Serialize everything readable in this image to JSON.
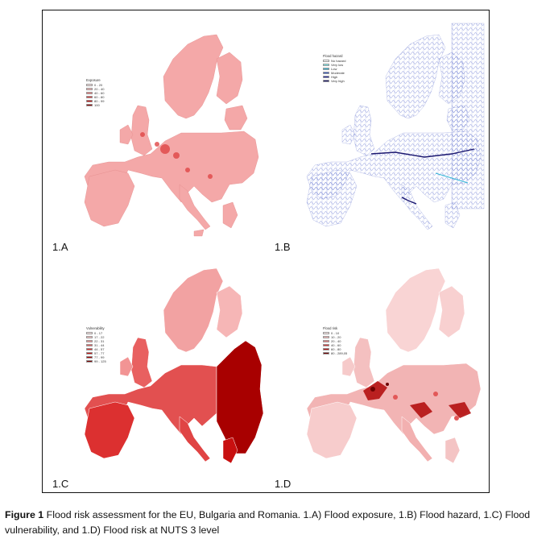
{
  "panels": [
    {
      "label": "1.A",
      "legend": {
        "title": "Exposure",
        "entries": [
          {
            "text": "0 - 20",
            "color": "#fbe3e3"
          },
          {
            "text": "20 - 40",
            "color": "#f6b3b3"
          },
          {
            "text": "40 - 60",
            "color": "#ef7b7b"
          },
          {
            "text": "60 - 80",
            "color": "#e23b3b"
          },
          {
            "text": "80 - 99",
            "color": "#c60a0a"
          },
          {
            "text": "100",
            "color": "#8f0000"
          }
        ]
      }
    },
    {
      "label": "1.B",
      "legend": {
        "title": "Flood hazard",
        "entries": [
          {
            "text": "No hazard",
            "color": "#ffffff"
          },
          {
            "text": "Very low",
            "color": "#7fe8e8"
          },
          {
            "text": "Low",
            "color": "#35b8d8"
          },
          {
            "text": "Moderate",
            "color": "#3a5fc8"
          },
          {
            "text": "High",
            "color": "#2a2fa8"
          },
          {
            "text": "Very high",
            "color": "#1c1870"
          }
        ]
      }
    },
    {
      "label": "1.C",
      "legend": {
        "title": "Vulnerability",
        "entries": [
          {
            "text": "0 - 17",
            "color": "#fde6e6"
          },
          {
            "text": "17 - 22",
            "color": "#f9c0c0"
          },
          {
            "text": "22 - 31",
            "color": "#f29494"
          },
          {
            "text": "31 - 44",
            "color": "#e86060"
          },
          {
            "text": "44 - 57",
            "color": "#dc3030"
          },
          {
            "text": "57 - 77",
            "color": "#c81010"
          },
          {
            "text": "77 - 99",
            "color": "#a80000"
          },
          {
            "text": "99 - 125",
            "color": "#7a0000"
          }
        ]
      }
    },
    {
      "label": "1.D",
      "legend": {
        "title": "Flood risk",
        "entries": [
          {
            "text": "0 - 10",
            "color": "#fde8e8"
          },
          {
            "text": "10 - 20",
            "color": "#f6b8b8"
          },
          {
            "text": "20 - 40",
            "color": "#ea7c7c"
          },
          {
            "text": "40 - 60",
            "color": "#d63a3a"
          },
          {
            "text": "60 - 80",
            "color": "#b41010"
          },
          {
            "text": "80 - 289,05",
            "color": "#6e0000"
          }
        ]
      }
    }
  ],
  "caption": {
    "lead": "Figure 1",
    "text": " Flood risk assessment for the EU, Bulgaria and Romania. 1.A) Flood exposure, 1.B) Flood hazard, 1.C) Flood vulnerability, and 1.D) Flood risk at NUTS 3 level"
  }
}
